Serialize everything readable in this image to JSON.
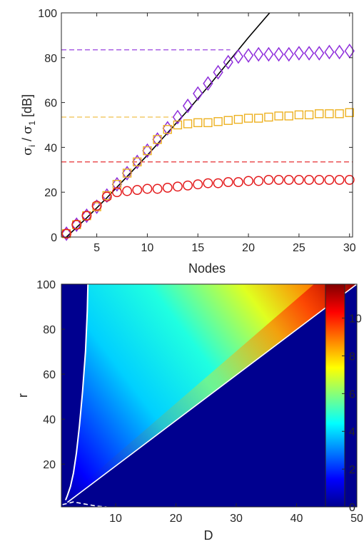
{
  "chart_data": [
    {
      "type": "scatter",
      "xlabel": "Nodes",
      "ylabel_parts": {
        "sym": "σ",
        "sub1": "i",
        "sep": " / ",
        "sym2": "σ",
        "sub2": "1",
        "unit": " [dB]"
      },
      "xlim": [
        1.5,
        30.3
      ],
      "ylim": [
        0,
        100
      ],
      "xticks": [
        5,
        10,
        15,
        20,
        25,
        30
      ],
      "yticks": [
        0,
        20,
        40,
        60,
        80,
        100
      ],
      "grid": false,
      "series": [
        {
          "marker": "diamond",
          "color": "#8e2ddb",
          "x": [
            2,
            3,
            4,
            5,
            6,
            7,
            8,
            9,
            10,
            11,
            12,
            13,
            14,
            15,
            16,
            17,
            18,
            19,
            20,
            21,
            22,
            23,
            24,
            25,
            26,
            27,
            28,
            29,
            30
          ],
          "y": [
            1.5,
            5.5,
            9.5,
            13.5,
            18.5,
            23.5,
            28.5,
            33.5,
            38.5,
            43.5,
            48.5,
            53.5,
            58.5,
            64,
            68.5,
            73.5,
            78,
            80.5,
            81,
            81.5,
            81.5,
            81.5,
            81.5,
            82,
            82,
            82,
            82.5,
            82.5,
            83
          ]
        },
        {
          "marker": "square",
          "color": "#edb120",
          "x": [
            2,
            3,
            4,
            5,
            6,
            7,
            8,
            9,
            10,
            11,
            12,
            13,
            14,
            15,
            16,
            17,
            18,
            19,
            20,
            21,
            22,
            23,
            24,
            25,
            26,
            27,
            28,
            29,
            30
          ],
          "y": [
            1.5,
            5.5,
            9.5,
            13.5,
            18.5,
            23.5,
            28.5,
            33.5,
            38.5,
            43.5,
            48,
            50,
            50.5,
            51,
            51,
            51.5,
            52,
            52.5,
            53,
            53,
            53.5,
            54,
            54,
            54.5,
            54.5,
            55,
            55,
            55,
            55.5
          ]
        },
        {
          "marker": "circle",
          "color": "#e41a1c",
          "x": [
            2,
            3,
            4,
            5,
            6,
            7,
            8,
            9,
            10,
            11,
            12,
            13,
            14,
            15,
            16,
            17,
            18,
            19,
            20,
            21,
            22,
            23,
            24,
            25,
            26,
            27,
            28,
            29,
            30
          ],
          "y": [
            1.5,
            5.5,
            9.5,
            14,
            18,
            20,
            20.5,
            21,
            21.5,
            21.5,
            22,
            22.5,
            23,
            23.5,
            24,
            24,
            24.5,
            24.5,
            25,
            25,
            25.5,
            25.5,
            25.5,
            25.5,
            25.5,
            25.5,
            25.5,
            25.5,
            25.5
          ]
        },
        {
          "type": "line",
          "color": "#000000",
          "x": [
            2,
            4,
            6,
            8,
            10,
            12,
            14,
            16,
            18,
            20,
            22.1
          ],
          "y": [
            0,
            8.5,
            17.5,
            27,
            36.5,
            46.5,
            56.5,
            67,
            78,
            89,
            100
          ]
        }
      ],
      "hlines": [
        {
          "y": 83.5,
          "color": "#8e2ddb",
          "x_end": 18.2
        },
        {
          "y": 53.5,
          "color": "#edb120",
          "x_end": 12.5
        },
        {
          "y": 33.5,
          "color": "#e41a1c",
          "x_end": 30.3
        }
      ]
    },
    {
      "type": "heatmap",
      "xlabel": "D",
      "ylabel": "r",
      "xlim": [
        1,
        50
      ],
      "ylim": [
        1,
        100
      ],
      "xticks": [
        10,
        20,
        30,
        40,
        50
      ],
      "yticks": [
        20,
        40,
        60,
        80,
        100
      ],
      "colormap": "jet",
      "color_range": [
        0,
        11.8
      ],
      "colorbar_ticks": [
        0,
        2,
        4,
        6,
        8,
        10
      ],
      "region": "value rises from 0 near the D-axis origin to ~11.8 along the diagonal r = 2D, zero below the diagonal",
      "white_solid_curve": {
        "d": [
          1.7,
          2.0,
          2.5,
          3.0,
          3.5,
          4.0,
          4.5,
          5.0,
          5.3,
          5.4
        ],
        "r": [
          4,
          6,
          10,
          16,
          25,
          37,
          52,
          70,
          88,
          100
        ]
      },
      "white_dashed_curve": {
        "d": [
          1.2,
          3,
          5,
          7,
          8.5
        ],
        "r": [
          2,
          3.2,
          2.2,
          1.3,
          1
        ]
      },
      "white_diagonal": {
        "from": [
          2,
          3
        ],
        "to": [
          50,
          100
        ]
      }
    }
  ]
}
